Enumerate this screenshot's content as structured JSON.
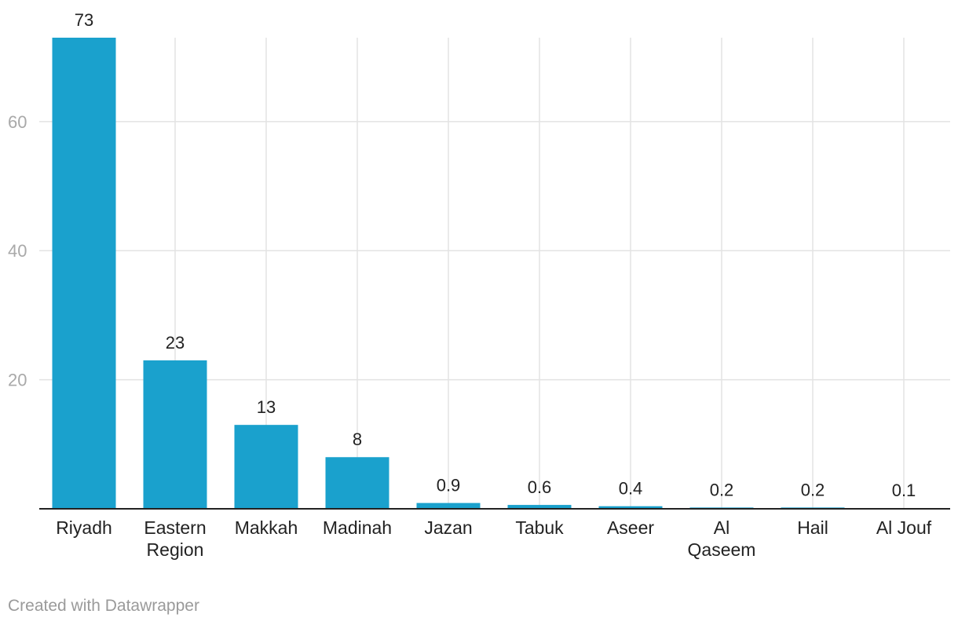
{
  "chart_data": {
    "type": "bar",
    "categories": [
      "Riyadh",
      "Eastern Region",
      "Makkah",
      "Madinah",
      "Jazan",
      "Tabuk",
      "Aseer",
      "Al Qaseem",
      "Hail",
      "Al Jouf"
    ],
    "category_lines": [
      [
        "Riyadh"
      ],
      [
        "Eastern",
        "Region"
      ],
      [
        "Makkah"
      ],
      [
        "Madinah"
      ],
      [
        "Jazan"
      ],
      [
        "Tabuk"
      ],
      [
        "Aseer"
      ],
      [
        "Al",
        "Qaseem"
      ],
      [
        "Hail"
      ],
      [
        "Al Jouf"
      ]
    ],
    "values": [
      73,
      23,
      13,
      8,
      0.9,
      0.6,
      0.4,
      0.2,
      0.2,
      0.1
    ],
    "value_labels": [
      "73",
      "23",
      "13",
      "8",
      "0.9",
      "0.6",
      "0.4",
      "0.2",
      "0.2",
      "0.1"
    ],
    "y_ticks": [
      20,
      40,
      60
    ],
    "ylim": [
      0,
      73
    ],
    "grid": true,
    "bar_color": "#1aa1cd"
  },
  "footer": {
    "credit": "Created with Datawrapper"
  }
}
